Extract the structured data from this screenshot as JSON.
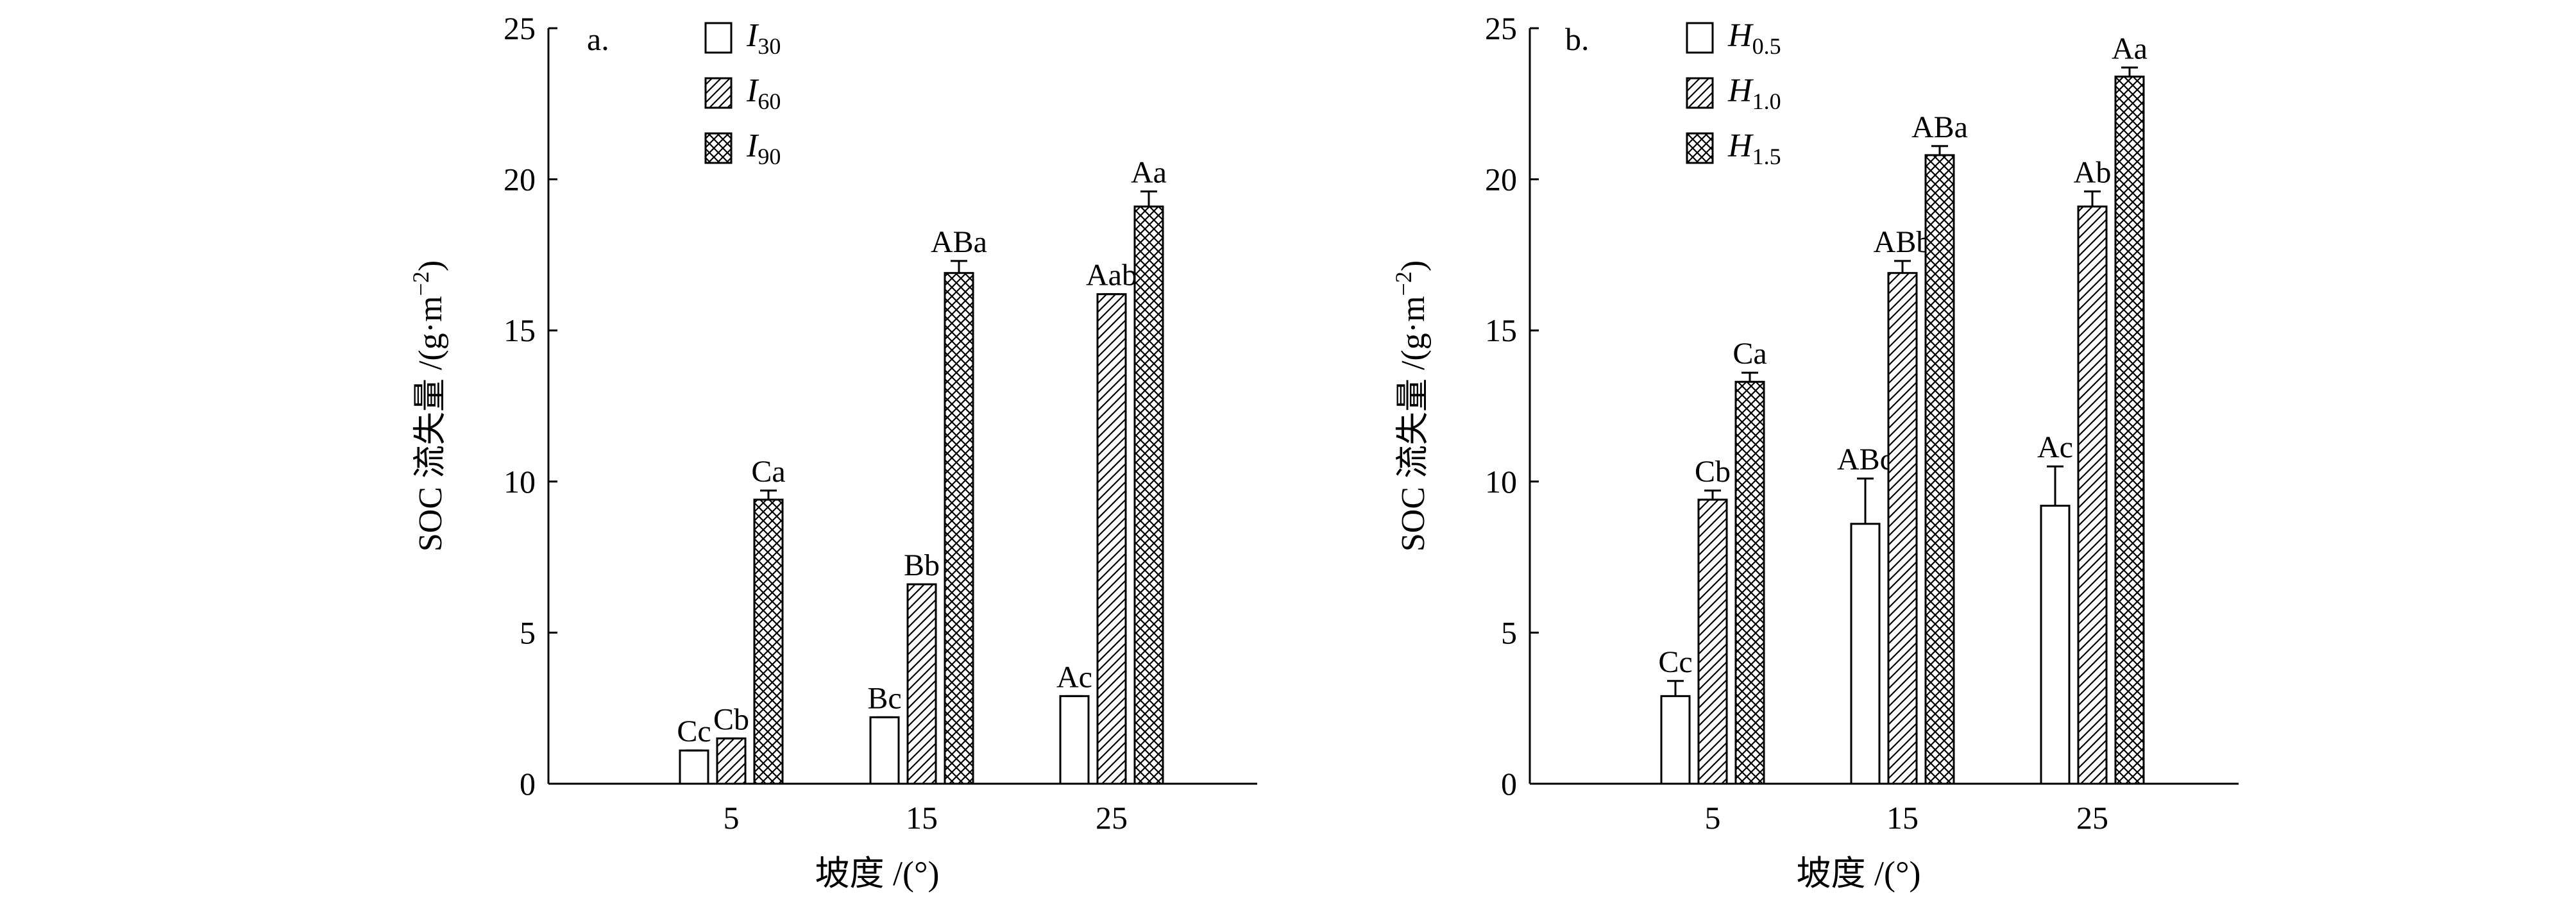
{
  "chart_data": [
    {
      "panel_label": "a.",
      "type": "bar",
      "xlabel": "坡度 /(°)",
      "ylabel_main": "SOC 流失量 /(g·m",
      "ylabel_sup": "−2",
      "ylabel_tail": ")",
      "ylim": [
        0,
        25
      ],
      "yticks": [
        "0",
        "5",
        "10",
        "15",
        "20",
        "25"
      ],
      "categories": [
        "5",
        "15",
        "25"
      ],
      "legend_position": "top-left",
      "series": [
        {
          "name_main": "I",
          "name_sub": "30",
          "pattern": "open",
          "values": [
            1.1,
            2.2,
            2.9
          ],
          "errors": [
            0.0,
            0.0,
            0.0
          ],
          "labels": [
            "Cc",
            "Bc",
            "Ac"
          ]
        },
        {
          "name_main": "I",
          "name_sub": "60",
          "pattern": "hatch",
          "values": [
            1.5,
            6.6,
            16.2
          ],
          "errors": [
            0.0,
            0.0,
            0.0
          ],
          "labels": [
            "Cb",
            "Bb",
            "Aab"
          ]
        },
        {
          "name_main": "I",
          "name_sub": "90",
          "pattern": "cross",
          "values": [
            9.4,
            16.9,
            19.1
          ],
          "errors": [
            0.3,
            0.4,
            0.5
          ],
          "labels": [
            "Ca",
            "ABa",
            "Aa"
          ]
        }
      ]
    },
    {
      "panel_label": "b.",
      "type": "bar",
      "xlabel": "坡度 /(°)",
      "ylabel_main": "SOC 流失量 /(g·m",
      "ylabel_sup": "−2",
      "ylabel_tail": ")",
      "ylim": [
        0,
        25
      ],
      "yticks": [
        "0",
        "5",
        "10",
        "15",
        "20",
        "25"
      ],
      "categories": [
        "5",
        "15",
        "25"
      ],
      "legend_position": "top-left",
      "series": [
        {
          "name_main": "H",
          "name_sub": "0.5",
          "pattern": "open",
          "values": [
            2.9,
            8.6,
            9.2
          ],
          "errors": [
            0.5,
            1.5,
            1.3
          ],
          "labels": [
            "Cc",
            "ABc",
            "Ac"
          ]
        },
        {
          "name_main": "H",
          "name_sub": "1.0",
          "pattern": "hatch",
          "values": [
            9.4,
            16.9,
            19.1
          ],
          "errors": [
            0.3,
            0.4,
            0.5
          ],
          "labels": [
            "Cb",
            "ABb",
            "Ab"
          ]
        },
        {
          "name_main": "H",
          "name_sub": "1.5",
          "pattern": "cross",
          "values": [
            13.3,
            20.8,
            23.4
          ],
          "errors": [
            0.3,
            0.3,
            0.3
          ],
          "labels": [
            "Ca",
            "ABa",
            "Aa"
          ]
        }
      ]
    }
  ]
}
